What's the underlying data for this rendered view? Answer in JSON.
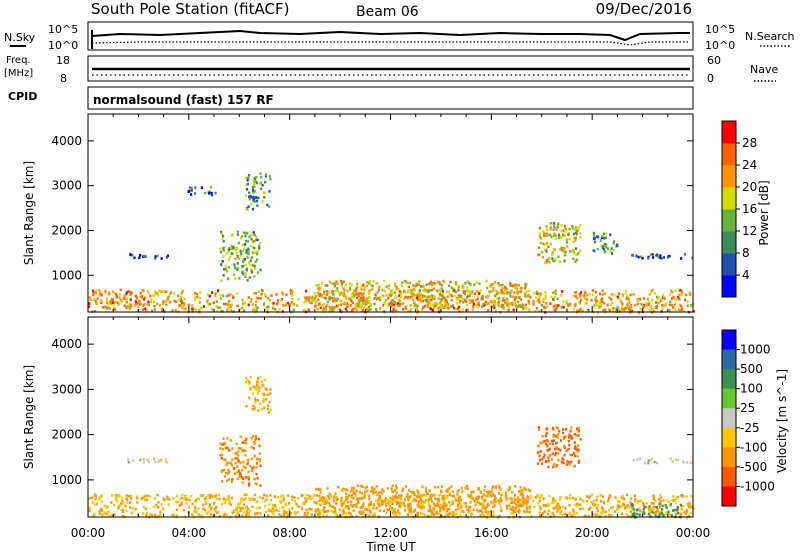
{
  "header": {
    "title": "South Pole Station (fitACF)",
    "beam": "Beam 06",
    "date": "09/Dec/2016"
  },
  "sky_panel": {
    "left_label": "N.Sky",
    "right_label": "N.Search",
    "left_ticks": [
      "10^5",
      "10^0"
    ],
    "right_ticks": [
      "10^5",
      "10^0"
    ]
  },
  "freq_panel": {
    "left_label_1": "Freq.",
    "left_label_2": "[MHz]",
    "left_ticks": [
      "18",
      "8"
    ],
    "right_label": "Nave",
    "right_ticks": [
      "60",
      "0"
    ]
  },
  "cpid_panel": {
    "label": "CPID",
    "text": "normalsound (fast) 157 RF"
  },
  "colors": {
    "power_scale": [
      "#0000ff",
      "#2050b0",
      "#3c8c5a",
      "#64b43c",
      "#d2dc00",
      "#ff9600",
      "#ff6400",
      "#ff0000"
    ],
    "velocity_scale": [
      "#ff0000",
      "#ff5a00",
      "#ff9600",
      "#ffc800",
      "#c8c8c8",
      "#64c832",
      "#3c9050",
      "#2a6ca0",
      "#0a00ff"
    ]
  },
  "chart_data": [
    {
      "type": "heatmap",
      "panel": "power",
      "xlabel": "",
      "ylabel": "Slant Range [km]",
      "x_ticks": [
        "00:00",
        "04:00",
        "08:00",
        "12:00",
        "16:00",
        "20:00",
        "00:00"
      ],
      "x_range_hours": [
        0,
        24
      ],
      "y_ticks": [
        1000,
        2000,
        3000,
        4000
      ],
      "ylim": [
        180,
        4600
      ],
      "colorbar": {
        "label": "Power [dB]",
        "range": [
          0,
          32
        ],
        "ticks": [
          4,
          8,
          12,
          16,
          20,
          24,
          28
        ]
      },
      "regions": [
        {
          "t_start": 0.0,
          "t_end": 24.0,
          "range_start": 200,
          "range_end": 700,
          "level": 22
        },
        {
          "t_start": 1.3,
          "t_end": 3.2,
          "range_start": 1400,
          "range_end": 1500,
          "level": 6
        },
        {
          "t_start": 3.8,
          "t_end": 5.2,
          "range_start": 2800,
          "range_end": 3000,
          "level": 7
        },
        {
          "t_start": 5.2,
          "t_end": 6.8,
          "range_start": 900,
          "range_end": 2000,
          "level": 14
        },
        {
          "t_start": 6.2,
          "t_end": 7.2,
          "range_start": 2500,
          "range_end": 3300,
          "level": 12
        },
        {
          "t_start": 9.0,
          "t_end": 17.5,
          "range_start": 300,
          "range_end": 900,
          "level": 20
        },
        {
          "t_start": 17.8,
          "t_end": 19.5,
          "range_start": 1300,
          "range_end": 2200,
          "level": 18
        },
        {
          "t_start": 20.0,
          "t_end": 21.0,
          "range_start": 1500,
          "range_end": 2000,
          "level": 10
        },
        {
          "t_start": 21.5,
          "t_end": 24.0,
          "range_start": 1400,
          "range_end": 1500,
          "level": 6
        }
      ]
    },
    {
      "type": "heatmap",
      "panel": "velocity",
      "xlabel": "Time UT",
      "ylabel": "Slant Range [km]",
      "x_ticks": [
        "00:00",
        "04:00",
        "08:00",
        "12:00",
        "16:00",
        "20:00",
        "00:00"
      ],
      "x_range_hours": [
        0,
        24
      ],
      "y_ticks": [
        1000,
        2000,
        3000,
        4000
      ],
      "ylim": [
        180,
        4600
      ],
      "colorbar": {
        "label": "Velocity [m s^-1]",
        "tick_labels": [
          "1000",
          "500",
          "100",
          "25",
          "-25",
          "-100",
          "-500",
          "-1000"
        ]
      },
      "regions": [
        {
          "t_start": 0.0,
          "t_end": 24.0,
          "range_start": 200,
          "range_end": 700,
          "level": -100
        },
        {
          "t_start": 1.3,
          "t_end": 3.2,
          "range_start": 1400,
          "range_end": 1500,
          "level": 0
        },
        {
          "t_start": 5.2,
          "t_end": 6.8,
          "range_start": 900,
          "range_end": 2000,
          "level": -400
        },
        {
          "t_start": 6.2,
          "t_end": 7.2,
          "range_start": 2500,
          "range_end": 3300,
          "level": -100
        },
        {
          "t_start": 9.0,
          "t_end": 17.5,
          "range_start": 300,
          "range_end": 900,
          "level": -300
        },
        {
          "t_start": 17.8,
          "t_end": 19.5,
          "range_start": 1300,
          "range_end": 2200,
          "level": -600
        },
        {
          "t_start": 21.5,
          "t_end": 23.5,
          "range_start": 200,
          "range_end": 500,
          "level": 300
        },
        {
          "t_start": 21.5,
          "t_end": 24.0,
          "range_start": 1400,
          "range_end": 1500,
          "level": 0
        }
      ]
    }
  ]
}
